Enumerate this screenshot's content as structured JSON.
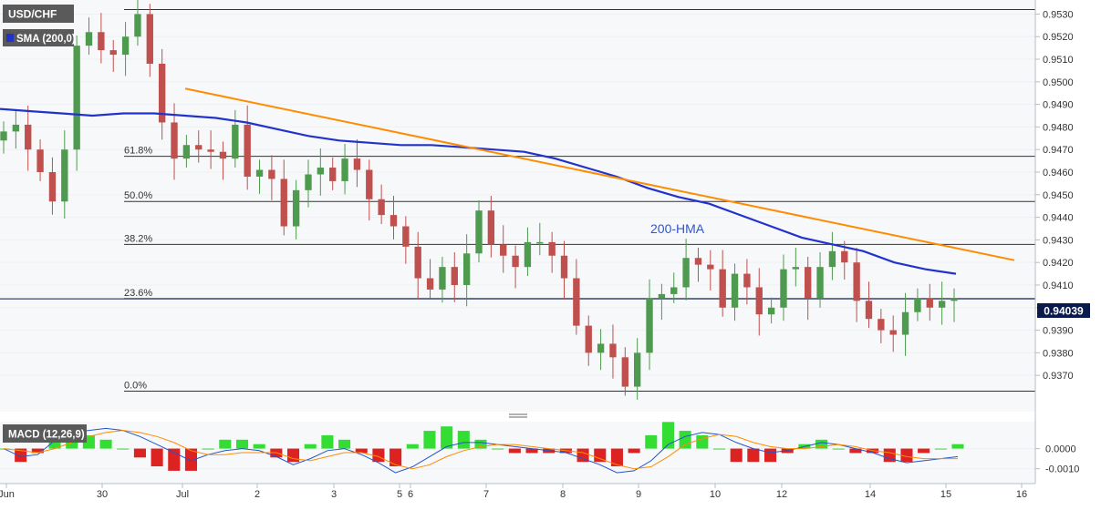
{
  "chart_data": [
    {
      "type": "candlestick",
      "instrument_label": "USD/CHF",
      "indicator_label": "SMA (200,0)",
      "hma_label": "200-HMA",
      "last_price_label": "0.94039",
      "y_ticks": [
        "0.9530",
        "0.9520",
        "0.9510",
        "0.9500",
        "0.9490",
        "0.9480",
        "0.9470",
        "0.9460",
        "0.9450",
        "0.9440",
        "0.9430",
        "0.9420",
        "0.9410",
        "0.9400",
        "0.9390",
        "0.9380",
        "0.9370"
      ],
      "ylim": [
        0.9362,
        0.9533
      ],
      "x_ticks": [
        "Jun",
        "30",
        "Jul",
        "2",
        "3",
        "5",
        "6",
        "7",
        "8",
        "9",
        "10",
        "12",
        "14",
        "15",
        "16"
      ],
      "fib_levels": [
        {
          "label": "61.8%",
          "value": 0.9467
        },
        {
          "label": "50.0%",
          "value": 0.9447
        },
        {
          "label": "38.2%",
          "value": 0.9428
        },
        {
          "label": "23.6%",
          "value": 0.9404
        },
        {
          "label": "0.0%",
          "value": 0.9363
        }
      ],
      "swing_high": 0.9532,
      "trendline": {
        "start": 0.9497,
        "end": 0.9421,
        "color": "#ff8c00"
      },
      "colors": {
        "up": "#4e9a4e",
        "down": "#c0504d",
        "hma": "#2233cc",
        "fib": "#333333",
        "tag": "#0a1a4a"
      },
      "hma_values": [
        0.9488,
        0.9487,
        0.9486,
        0.9485,
        0.9486,
        0.9486,
        0.9485,
        0.9484,
        0.9482,
        0.9479,
        0.9476,
        0.9474,
        0.9473,
        0.9472,
        0.9472,
        0.9471,
        0.947,
        0.9469,
        0.9466,
        0.9462,
        0.9458,
        0.9453,
        0.9449,
        0.9446,
        0.9441,
        0.9436,
        0.9431,
        0.9428,
        0.9425,
        0.942,
        0.9417,
        0.9415
      ],
      "close_values": [
        0.9478,
        0.9481,
        0.947,
        0.946,
        0.9447,
        0.947,
        0.9516,
        0.9522,
        0.9514,
        0.9512,
        0.952,
        0.953,
        0.9508,
        0.9482,
        0.9466,
        0.9472,
        0.947,
        0.9469,
        0.9466,
        0.9481,
        0.9458,
        0.9461,
        0.9457,
        0.9436,
        0.9452,
        0.9459,
        0.9462,
        0.9456,
        0.9466,
        0.9461,
        0.9448,
        0.9441,
        0.9436,
        0.9427,
        0.9413,
        0.9408,
        0.9418,
        0.941,
        0.9424,
        0.9443,
        0.9428,
        0.9423,
        0.9418,
        0.9429,
        0.9429,
        0.9423,
        0.9413,
        0.9392,
        0.938,
        0.9384,
        0.9378,
        0.9365,
        0.938,
        0.9404,
        0.9406,
        0.9409,
        0.9422,
        0.9419,
        0.9417,
        0.94,
        0.9415,
        0.9409,
        0.9397,
        0.94,
        0.9417,
        0.9418,
        0.9404,
        0.9418,
        0.9425,
        0.942,
        0.9403,
        0.9395,
        0.939,
        0.9388,
        0.9398,
        0.9404,
        0.94,
        0.9403,
        0.9404
      ]
    },
    {
      "type": "macd",
      "label": "MACD (12,26,9)",
      "y_ticks": [
        "0.0000",
        "-0.0010"
      ],
      "ylim": [
        -0.0016,
        0.0012
      ],
      "colors": {
        "macd": "#2255cc",
        "signal": "#ff8c00",
        "hist_pos": "#33dd33",
        "hist_neg": "#dd2222"
      },
      "macd_values": [
        0.0,
        -0.0004,
        -0.0003,
        0.0004,
        0.0008,
        0.0009,
        0.001,
        0.0009,
        0.0006,
        0.0002,
        -0.0002,
        -0.0006,
        -0.0003,
        -0.0001,
        0.0,
        -0.0001,
        -0.0004,
        -0.0008,
        -0.0005,
        -0.0001,
        0.0,
        -0.0003,
        -0.0007,
        -0.0012,
        -0.0009,
        -0.0004,
        0.0001,
        0.0003,
        0.0003,
        0.0002,
        0.0001,
        0.0,
        -0.0001,
        -0.0002,
        -0.0005,
        -0.0008,
        -0.0012,
        -0.0011,
        -0.0006,
        0.0002,
        0.0006,
        0.0008,
        0.0007,
        0.0003,
        0.0,
        -0.0002,
        -0.0001,
        0.0001,
        0.0003,
        0.0002,
        0.0,
        -0.0002,
        -0.0005,
        -0.0007,
        -0.0006,
        -0.0005,
        -0.0004
      ],
      "signal_values": [
        0.0,
        -0.0001,
        -0.0002,
        0.0,
        0.0003,
        0.0006,
        0.0008,
        0.0009,
        0.0008,
        0.0006,
        0.0003,
        -0.0001,
        -0.0003,
        -0.0003,
        -0.0002,
        -0.0002,
        -0.0002,
        -0.0005,
        -0.0006,
        -0.0004,
        -0.0002,
        -0.0002,
        -0.0004,
        -0.0008,
        -0.001,
        -0.0008,
        -0.0004,
        -0.0001,
        0.0001,
        0.0002,
        0.0002,
        0.0001,
        0.0,
        -0.0001,
        -0.0002,
        -0.0005,
        -0.0008,
        -0.001,
        -0.0009,
        -0.0004,
        0.0002,
        0.0005,
        0.0007,
        0.0006,
        0.0003,
        0.0001,
        0.0,
        0.0,
        0.0001,
        0.0002,
        0.0001,
        -0.0001,
        -0.0002,
        -0.0004,
        -0.0005,
        -0.0005,
        -0.0005
      ]
    }
  ]
}
